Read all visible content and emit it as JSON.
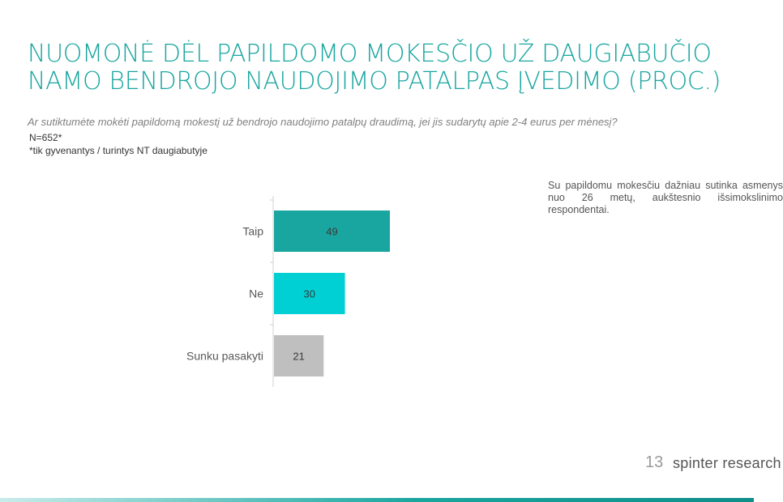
{
  "title_line1": "NUOMONĖ DĖL PAPILDOMO MOKESČIO UŽ DAUGIABUČIO",
  "title_line2": "NAMO BENDROJO NAUDOJIMO PATALPAS ĮVEDIMO (PROC.)",
  "question": "Ar sutiktumėte mokėti papildomą mokestį už bendrojo naudojimo patalpų draudimą, jei jis sudarytų apie 2-4 eurus per mėnesį?",
  "sample_size": "N=652*",
  "footnote": "*tik gyvenantys / turintys NT daugiabutyje",
  "side_note": "Su papildomu mokesčiu dažniau sutinka asmenys nuo 26 metų, aukštesnio išsimokslinimo respondentai.",
  "page_number": "13",
  "brand": "spinter research",
  "chart_data": {
    "type": "bar",
    "orientation": "horizontal",
    "categories": [
      "Taip",
      "Ne",
      "Sunku pasakyti"
    ],
    "values": [
      49,
      30,
      21
    ],
    "colors": [
      "#1aa6a0",
      "#00d0d4",
      "#bfbfbf"
    ],
    "xlim": [
      0,
      100
    ],
    "data_labels": true,
    "grid": false
  }
}
